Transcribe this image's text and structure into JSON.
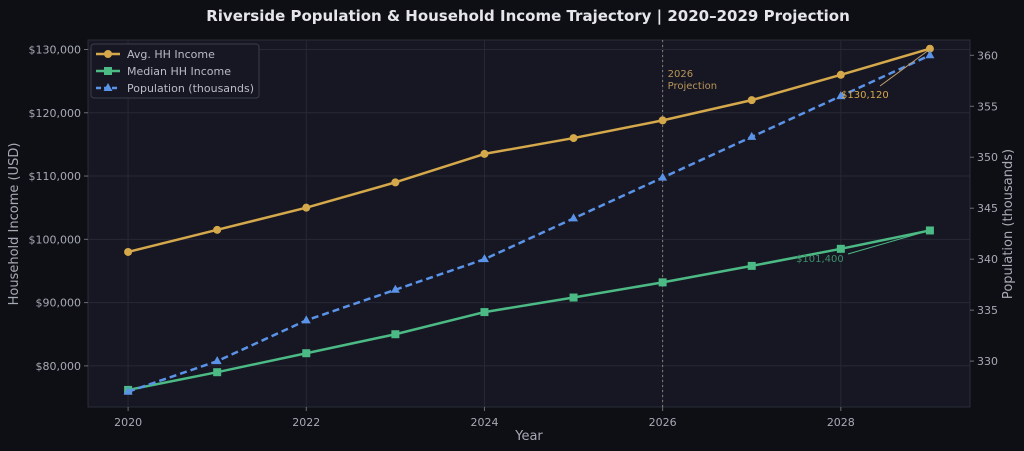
{
  "chart_data": {
    "type": "line",
    "title": "Riverside Population & Household Income Trajectory  |  2020–2029 Projection",
    "xlabel": "Year",
    "ylabel_left": "Household Income (USD)",
    "ylabel_right": "Population (thousands)",
    "x": [
      2020,
      2021,
      2022,
      2023,
      2024,
      2025,
      2026,
      2027,
      2028,
      2029
    ],
    "x_ticks": [
      2020,
      2022,
      2024,
      2026,
      2028
    ],
    "x_tick_labels": [
      "2020",
      "2022",
      "2024",
      "2026",
      "2028"
    ],
    "xlim": [
      2019.55,
      2029.45
    ],
    "ylim_left": [
      73500,
      131500
    ],
    "ylim_right": [
      325.5,
      361.5
    ],
    "y_ticks_left": [
      80000,
      90000,
      100000,
      110000,
      120000,
      130000
    ],
    "y_tick_labels_left": [
      "$80,000",
      "$90,000",
      "$100,000",
      "$110,000",
      "$120,000",
      "$130,000"
    ],
    "y_ticks_right": [
      330,
      335,
      340,
      345,
      350,
      355,
      360
    ],
    "y_tick_labels_right": [
      "330",
      "335",
      "340",
      "345",
      "350",
      "355",
      "360"
    ],
    "grid": true,
    "legend_position": "top-left",
    "series": [
      {
        "name": "Avg. HH Income",
        "axis": "left",
        "color": "#d4a84b",
        "marker": "circle",
        "dash": false,
        "values": [
          98000,
          101500,
          105000,
          109000,
          113500,
          116000,
          118800,
          122000,
          126000,
          130120
        ]
      },
      {
        "name": "Median HH Income",
        "axis": "left",
        "color": "#4cba85",
        "marker": "square",
        "dash": false,
        "values": [
          76200,
          79000,
          82000,
          85000,
          88500,
          90800,
          93200,
          95800,
          98500,
          101400
        ]
      },
      {
        "name": "Population (thousands)",
        "axis": "right",
        "color": "#5a93e8",
        "marker": "triangle",
        "dash": true,
        "values": [
          327,
          330,
          334,
          337,
          340,
          344,
          348,
          352,
          356,
          360
        ]
      }
    ],
    "annotations": {
      "projection_line_x": 2026,
      "projection_label_line1": "2026",
      "projection_label_line2": "Projection",
      "avg_end_label": "$130,120",
      "median_end_label": "$101,400"
    }
  }
}
